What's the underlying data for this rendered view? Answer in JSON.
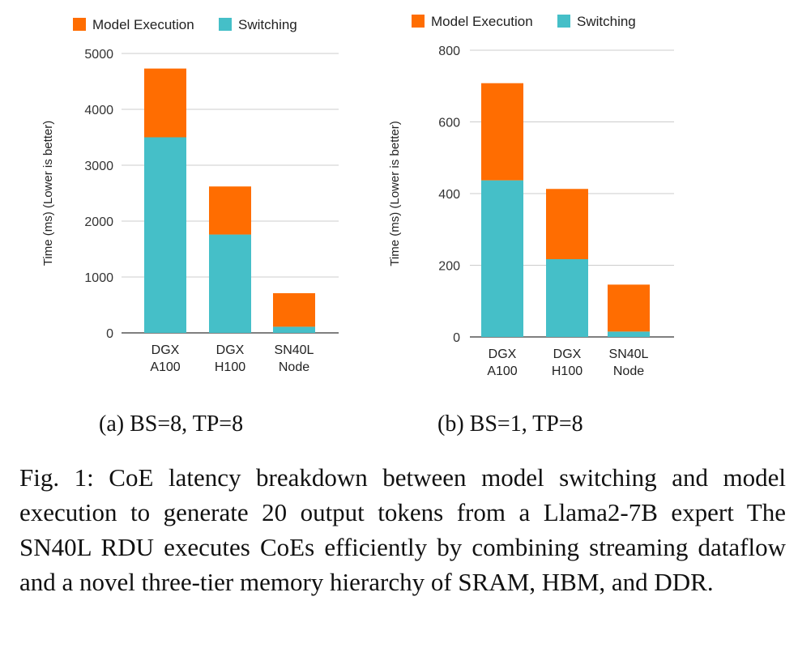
{
  "chart_data": [
    {
      "type": "bar",
      "stacked": true,
      "categories": [
        [
          "DGX",
          "A100"
        ],
        [
          "DGX",
          "H100"
        ],
        [
          "SN40L",
          "Node"
        ]
      ],
      "series": [
        {
          "name": "Switching",
          "color": "#45bfc8",
          "values": [
            3500,
            1760,
            110
          ]
        },
        {
          "name": "Model Execution",
          "color": "#ff6d01",
          "values": [
            1230,
            860,
            600
          ]
        }
      ],
      "legend_order": [
        "Model Execution",
        "Switching"
      ],
      "legend_position": "top",
      "ylabel": "Time (ms) (Lower is better)",
      "xlabel": "",
      "ylim": [
        0,
        5000
      ],
      "yticks": [
        0,
        1000,
        2000,
        3000,
        4000,
        5000
      ],
      "grid": true,
      "subcaption": "(a) BS=8, TP=8"
    },
    {
      "type": "bar",
      "stacked": true,
      "categories": [
        [
          "DGX",
          "A100"
        ],
        [
          "DGX",
          "H100"
        ],
        [
          "SN40L",
          "Node"
        ]
      ],
      "series": [
        {
          "name": "Switching",
          "color": "#45bfc8",
          "values": [
            437,
            217,
            15
          ]
        },
        {
          "name": "Model Execution",
          "color": "#ff6d01",
          "values": [
            271,
            196,
            131
          ]
        }
      ],
      "legend_order": [
        "Model Execution",
        "Switching"
      ],
      "legend_position": "top",
      "ylabel": "Time (ms) (Lower is better)",
      "xlabel": "",
      "ylim": [
        0,
        800
      ],
      "yticks": [
        0,
        200,
        400,
        600,
        800
      ],
      "grid": true,
      "subcaption": "(b) BS=1, TP=8"
    }
  ],
  "caption": "Fig. 1: CoE latency breakdown between model switching and model execution to generate 20 output tokens from a Llama2-7B expert The SN40L RDU executes CoEs efficiently by combining streaming dataflow and a novel three-tier memory hierarchy of SRAM, HBM, and DDR."
}
